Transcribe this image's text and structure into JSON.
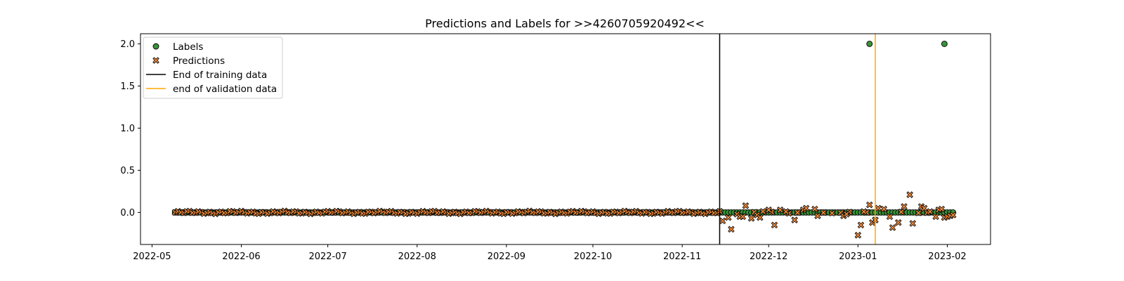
{
  "chart_data": {
    "type": "scatter",
    "title": "Predictions and Labels for >>4260705920492<<",
    "xlabel": "",
    "ylabel": "",
    "x_axis": "date",
    "xlim": [
      "2022-04-27",
      "2023-02-16"
    ],
    "ylim": [
      -0.38,
      2.12
    ],
    "x_ticks": [
      "2022-05-01",
      "2022-06-01",
      "2022-07-01",
      "2022-08-01",
      "2022-09-01",
      "2022-10-01",
      "2022-11-01",
      "2022-12-01",
      "2023-01-01",
      "2023-02-01"
    ],
    "x_tick_labels": [
      "2022-05",
      "2022-06",
      "2022-07",
      "2022-08",
      "2022-09",
      "2022-10",
      "2022-11",
      "2022-12",
      "2023-01",
      "2023-02"
    ],
    "y_ticks": [
      0.0,
      0.5,
      1.0,
      1.5,
      2.0
    ],
    "y_tick_labels": [
      "0.0",
      "0.5",
      "1.0",
      "1.5",
      "2.0"
    ],
    "grid": false,
    "legend_placement": "upper-left",
    "series": [
      {
        "name": "Labels",
        "marker": "circle",
        "color": "#3a923a",
        "edge_color": "#000000",
        "x_start": "2022-05-09",
        "x_end": "2023-02-03",
        "constant_value": 0.0,
        "outliers": [
          {
            "x": "2023-01-05",
            "y": 2.0
          },
          {
            "x": "2023-01-31",
            "y": 2.0
          }
        ]
      },
      {
        "name": "Predictions",
        "marker": "x-filled",
        "color": "#f08a3c",
        "edge_color": "#000000",
        "x_start": "2022-05-09",
        "x_end": "2023-02-03",
        "baseline_value": 0.0,
        "notable_points": [
          {
            "x": "2022-11-15",
            "y": -0.1
          },
          {
            "x": "2022-11-17",
            "y": -0.06
          },
          {
            "x": "2022-11-18",
            "y": -0.2
          },
          {
            "x": "2022-11-20",
            "y": -0.02
          },
          {
            "x": "2022-11-21",
            "y": -0.05
          },
          {
            "x": "2022-11-22",
            "y": -0.05
          },
          {
            "x": "2022-11-23",
            "y": 0.08
          },
          {
            "x": "2022-11-25",
            "y": -0.07
          },
          {
            "x": "2022-11-27",
            "y": -0.03
          },
          {
            "x": "2022-11-28",
            "y": -0.06
          },
          {
            "x": "2022-12-01",
            "y": 0.03
          },
          {
            "x": "2022-12-03",
            "y": -0.15
          },
          {
            "x": "2022-12-05",
            "y": 0.03
          },
          {
            "x": "2022-12-07",
            "y": 0.01
          },
          {
            "x": "2022-12-10",
            "y": -0.09
          },
          {
            "x": "2022-12-13",
            "y": 0.03
          },
          {
            "x": "2022-12-14",
            "y": 0.05
          },
          {
            "x": "2022-12-17",
            "y": 0.04
          },
          {
            "x": "2022-12-18",
            "y": -0.04
          },
          {
            "x": "2022-12-27",
            "y": -0.04
          },
          {
            "x": "2022-12-28",
            "y": -0.02
          },
          {
            "x": "2023-01-01",
            "y": -0.27
          },
          {
            "x": "2023-01-02",
            "y": -0.15
          },
          {
            "x": "2023-01-03",
            "y": 0.01
          },
          {
            "x": "2023-01-05",
            "y": 0.09
          },
          {
            "x": "2023-01-06",
            "y": -0.12
          },
          {
            "x": "2023-01-07",
            "y": -0.09
          },
          {
            "x": "2023-01-08",
            "y": 0.05
          },
          {
            "x": "2023-01-10",
            "y": 0.04
          },
          {
            "x": "2023-01-12",
            "y": -0.05
          },
          {
            "x": "2023-01-13",
            "y": -0.18
          },
          {
            "x": "2023-01-15",
            "y": -0.12
          },
          {
            "x": "2023-01-17",
            "y": 0.07
          },
          {
            "x": "2023-01-19",
            "y": 0.21
          },
          {
            "x": "2023-01-20",
            "y": -0.13
          },
          {
            "x": "2023-01-23",
            "y": 0.07
          },
          {
            "x": "2023-01-24",
            "y": 0.05
          },
          {
            "x": "2023-01-26",
            "y": 0.01
          },
          {
            "x": "2023-01-28",
            "y": -0.05
          },
          {
            "x": "2023-01-29",
            "y": 0.03
          },
          {
            "x": "2023-01-30",
            "y": 0.04
          },
          {
            "x": "2023-01-31",
            "y": -0.06
          },
          {
            "x": "2023-02-01",
            "y": -0.05
          },
          {
            "x": "2023-02-02",
            "y": -0.04
          },
          {
            "x": "2023-02-03",
            "y": -0.03
          }
        ]
      }
    ],
    "vlines": [
      {
        "name": "End of training data",
        "x": "2022-11-14",
        "color": "#000000"
      },
      {
        "name": "end of validation data",
        "x": "2023-01-07",
        "color": "#ffa500"
      }
    ],
    "legend": [
      "Labels",
      "Predictions",
      "End of training data",
      "end of validation data"
    ]
  }
}
